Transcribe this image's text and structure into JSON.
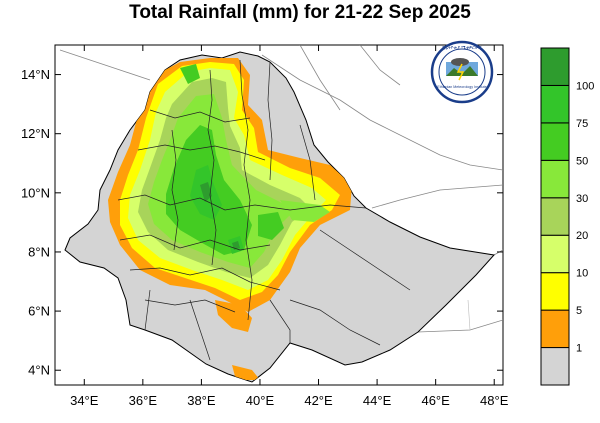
{
  "title": "Total Rainfall (mm) for 21-22 Sep 2025",
  "map": {
    "lon_range": [
      33,
      48.3
    ],
    "lat_range": [
      3.5,
      15
    ],
    "x_ticks": [
      "34°E",
      "36°E",
      "38°E",
      "40°E",
      "42°E",
      "44°E",
      "46°E",
      "48°E"
    ],
    "y_ticks": [
      "14°N",
      "12°N",
      "10°N",
      "8°N",
      "6°N",
      "4°N"
    ],
    "land_color": "#d4d4d4",
    "sea_color": "#ffffff"
  },
  "colorbar": {
    "tick_labels": [
      "1",
      "5",
      "10",
      "20",
      "30",
      "50",
      "75",
      "100"
    ],
    "colors": [
      "#d4d4d4",
      "#ff9f0a",
      "#ffff00",
      "#d6ff6a",
      "#a8d45a",
      "#88e83a",
      "#44cc22",
      "#33c52a",
      "#2e9c2e"
    ]
  },
  "logo": {
    "amharic_text": "የኢትዮጵያ ሜቲዎሮሎጂ",
    "english_text": "Ethiopian Meteorology Institute"
  }
}
